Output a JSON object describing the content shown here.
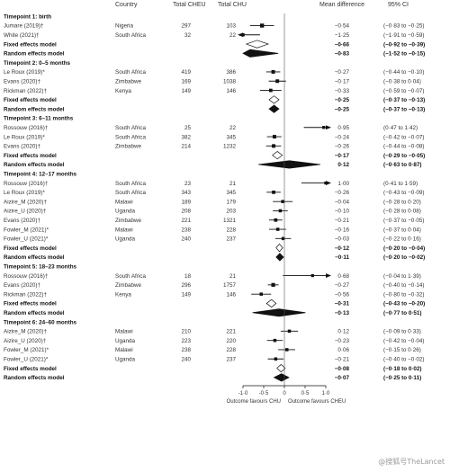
{
  "chart_data": {
    "type": "forest",
    "headers": {
      "country": "Country",
      "cheu": "Total CHEU",
      "chu": "Total CHU",
      "md": "Mean difference",
      "ci": "95% CI"
    },
    "xaxis": {
      "ticks": [
        -1.0,
        -0.5,
        0,
        0.5,
        1.0
      ],
      "tick_labels": [
        "-1·0",
        "-0·5",
        "0",
        "0·5",
        "1·0"
      ],
      "range": [
        -1.0,
        1.0
      ],
      "label_left": "Outcome favours CHU",
      "label_right": "Outcome favours CHEU"
    },
    "rows": [
      {
        "kind": "header",
        "label": "Timepoint 1: birth"
      },
      {
        "kind": "study",
        "label": "Jumare (2019)†",
        "country": "Nigeria",
        "cheu": "297",
        "chu": "103",
        "md": -0.54,
        "md_text": "−0·54",
        "ci": [
          -0.83,
          -0.25
        ],
        "ci_text": "(−0·83 to −0·25)",
        "w": 1.0
      },
      {
        "kind": "study",
        "label": "White (2021)†",
        "country": "South Africa",
        "cheu": "32",
        "chu": "22",
        "md": -1.25,
        "md_text": "−1·25",
        "ci": [
          -1.91,
          -0.59
        ],
        "ci_text": "(−1·91 to −0·59)",
        "w": 0.6,
        "arrow": "left"
      },
      {
        "kind": "fixed",
        "label": "Fixed effects model",
        "md": -0.66,
        "md_text": "−0·66",
        "ci": [
          -0.92,
          -0.39
        ],
        "ci_text": "(−0·92 to −0·39)"
      },
      {
        "kind": "random",
        "label": "Random effects model",
        "md": -0.83,
        "md_text": "−0·83",
        "ci": [
          -1.52,
          -0.15
        ],
        "ci_text": "(−1·52 to −0·15)"
      },
      {
        "kind": "header",
        "label": "Timepoint 2: 0–5 months"
      },
      {
        "kind": "study",
        "label": "Le Roux (2019)*",
        "country": "South Africa",
        "cheu": "419",
        "chu": "386",
        "md": -0.27,
        "md_text": "−0·27",
        "ci": [
          -0.44,
          -0.1
        ],
        "ci_text": "(−0·44 to −0·10)",
        "w": 0.8
      },
      {
        "kind": "study",
        "label": "Evans (2020)†",
        "country": "Zimbabwe",
        "cheu": "169",
        "chu": "1038",
        "md": -0.17,
        "md_text": "−0·17",
        "ci": [
          -0.38,
          0.04
        ],
        "ci_text": "(−0·38 to 0·04)",
        "w": 0.8
      },
      {
        "kind": "study",
        "label": "Rickman (2022)†",
        "country": "Kenya",
        "cheu": "149",
        "chu": "146",
        "md": -0.33,
        "md_text": "−0·33",
        "ci": [
          -0.59,
          -0.07
        ],
        "ci_text": "(−0·59 to −0·07)",
        "w": 0.7
      },
      {
        "kind": "fixed",
        "label": "Fixed effects model",
        "md": -0.25,
        "md_text": "−0·25",
        "ci": [
          -0.37,
          -0.13
        ],
        "ci_text": "(−0·37 to −0·13)"
      },
      {
        "kind": "random",
        "label": "Random effects model",
        "md": -0.25,
        "md_text": "−0·25",
        "ci": [
          -0.37,
          -0.13
        ],
        "ci_text": "(−0·37 to −0·13)"
      },
      {
        "kind": "header",
        "label": "Timepoint 3: 6–11 months"
      },
      {
        "kind": "study",
        "label": "Rossouw (2016)†",
        "country": "South Africa",
        "cheu": "25",
        "chu": "22",
        "md": 0.95,
        "md_text": "0·95",
        "ci": [
          0.47,
          1.42
        ],
        "ci_text": "(0·47 to 1·42)",
        "w": 0.5,
        "arrow": "right"
      },
      {
        "kind": "study",
        "label": "Le Roux (2019)*",
        "country": "South Africa",
        "cheu": "382",
        "chu": "345",
        "md": -0.24,
        "md_text": "−0·24",
        "ci": [
          -0.42,
          -0.07
        ],
        "ci_text": "(−0·42 to −0·07)",
        "w": 0.8
      },
      {
        "kind": "study",
        "label": "Evans (2020)†",
        "country": "Zimbabwe",
        "cheu": "214",
        "chu": "1232",
        "md": -0.26,
        "md_text": "−0·26",
        "ci": [
          -0.44,
          -0.08
        ],
        "ci_text": "(−0·44 to −0·08)",
        "w": 0.8
      },
      {
        "kind": "fixed",
        "label": "Fixed effects model",
        "md": -0.17,
        "md_text": "−0·17",
        "ci": [
          -0.29,
          -0.05
        ],
        "ci_text": "(−0·29 to −0·05)"
      },
      {
        "kind": "random",
        "label": "Random effects model",
        "md": 0.12,
        "md_text": "0·12",
        "ci": [
          -0.63,
          0.87
        ],
        "ci_text": "(−0·63 to 0·87)"
      },
      {
        "kind": "header",
        "label": "Timepoint 4: 12–17 months"
      },
      {
        "kind": "study",
        "label": "Rossouw (2016)†",
        "country": "South Africa",
        "cheu": "23",
        "chu": "21",
        "md": 1.0,
        "md_text": "1·00",
        "ci": [
          0.41,
          1.59
        ],
        "ci_text": "(0·41 to 1·59)",
        "w": 0.5,
        "arrow": "right"
      },
      {
        "kind": "study",
        "label": "Le Roux (2019)*",
        "country": "South Africa",
        "cheu": "343",
        "chu": "345",
        "md": -0.26,
        "md_text": "−0·26",
        "ci": [
          -0.43,
          -0.09
        ],
        "ci_text": "(−0·43 to −0·09)",
        "w": 0.7
      },
      {
        "kind": "study",
        "label": "Aizire_M (2020)†",
        "country": "Malawi",
        "cheu": "189",
        "chu": "179",
        "md": -0.04,
        "md_text": "−0·04",
        "ci": [
          -0.28,
          0.2
        ],
        "ci_text": "(−0·28 to 0·20)",
        "w": 0.6
      },
      {
        "kind": "study",
        "label": "Aizire_U (2020)†",
        "country": "Uganda",
        "cheu": "208",
        "chu": "203",
        "md": -0.1,
        "md_text": "−0·10",
        "ci": [
          -0.28,
          0.08
        ],
        "ci_text": "(−0·28 to 0·08)",
        "w": 0.6
      },
      {
        "kind": "study",
        "label": "Evans (2020)†",
        "country": "Zimbabwe",
        "cheu": "221",
        "chu": "1321",
        "md": -0.21,
        "md_text": "−0·21",
        "ci": [
          -0.37,
          -0.05
        ],
        "ci_text": "(−0·37 to −0·05)",
        "w": 0.7
      },
      {
        "kind": "study",
        "label": "Fowler_M (2021)*",
        "country": "Malawi",
        "cheu": "238",
        "chu": "228",
        "md": -0.16,
        "md_text": "−0·16",
        "ci": [
          -0.37,
          0.04
        ],
        "ci_text": "(−0·37 to 0·04)",
        "w": 0.6
      },
      {
        "kind": "study",
        "label": "Fowler_U (2021)*",
        "country": "Uganda",
        "cheu": "240",
        "chu": "237",
        "md": -0.03,
        "md_text": "−0·03",
        "ci": [
          -0.22,
          0.16
        ],
        "ci_text": "(−0·22 to 0·16)",
        "w": 0.6
      },
      {
        "kind": "fixed",
        "label": "Fixed effects model",
        "md": -0.12,
        "md_text": "−0·12",
        "ci": [
          -0.2,
          -0.04
        ],
        "ci_text": "(−0·20 to −0·04)"
      },
      {
        "kind": "random",
        "label": "Random effects model",
        "md": -0.11,
        "md_text": "−0·11",
        "ci": [
          -0.2,
          -0.02
        ],
        "ci_text": "(−0·20 to −0·02)"
      },
      {
        "kind": "header",
        "label": "Timepoint 5: 18–23 months"
      },
      {
        "kind": "study",
        "label": "Rossouw (2016)†",
        "country": "South Africa",
        "cheu": "18",
        "chu": "21",
        "md": 0.68,
        "md_text": "0·68",
        "ci": [
          -0.04,
          1.39
        ],
        "ci_text": "(−0·04 to 1·39)",
        "w": 0.5,
        "arrow": "right"
      },
      {
        "kind": "study",
        "label": "Evans (2020)†",
        "country": "Zimbabwe",
        "cheu": "296",
        "chu": "1757",
        "md": -0.27,
        "md_text": "−0·27",
        "ci": [
          -0.4,
          -0.14
        ],
        "ci_text": "(−0·40 to −0·14)",
        "w": 0.9
      },
      {
        "kind": "study",
        "label": "Rickman (2022)†",
        "country": "Kenya",
        "cheu": "149",
        "chu": "146",
        "md": -0.56,
        "md_text": "−0·56",
        "ci": [
          -0.8,
          -0.32
        ],
        "ci_text": "(−0·80 to −0·32)",
        "w": 0.6
      },
      {
        "kind": "fixed",
        "label": "Fixed effects model",
        "md": -0.31,
        "md_text": "−0·31",
        "ci": [
          -0.43,
          -0.2
        ],
        "ci_text": "(−0·43 to −0·20)"
      },
      {
        "kind": "random",
        "label": "Random effects model",
        "md": -0.13,
        "md_text": "−0·13",
        "ci": [
          -0.77,
          0.51
        ],
        "ci_text": "(−0·77 to 0·51)"
      },
      {
        "kind": "header",
        "label": "Timepoint 6: 24–60 months"
      },
      {
        "kind": "study",
        "label": "Aizire_M (2020)†",
        "country": "Malawi",
        "cheu": "210",
        "chu": "221",
        "md": 0.12,
        "md_text": "0·12",
        "ci": [
          -0.09,
          0.33
        ],
        "ci_text": "(−0·09 to 0·33)",
        "w": 0.6
      },
      {
        "kind": "study",
        "label": "Aizire_U (2020)†",
        "country": "Uganda",
        "cheu": "223",
        "chu": "220",
        "md": -0.23,
        "md_text": "−0·23",
        "ci": [
          -0.42,
          -0.04
        ],
        "ci_text": "(−0·42 to −0·04)",
        "w": 0.6
      },
      {
        "kind": "study",
        "label": "Fowler_M (2021)*",
        "country": "Malawi",
        "cheu": "238",
        "chu": "228",
        "md": 0.06,
        "md_text": "0·06",
        "ci": [
          -0.15,
          0.26
        ],
        "ci_text": "(−0·15 to 0·26)",
        "w": 0.6
      },
      {
        "kind": "study",
        "label": "Fowler_U (2021)*",
        "country": "Uganda",
        "cheu": "240",
        "chu": "237",
        "md": -0.21,
        "md_text": "−0·21",
        "ci": [
          -0.4,
          -0.02
        ],
        "ci_text": "(−0·40 to −0·02)",
        "w": 0.6
      },
      {
        "kind": "fixed",
        "label": "Fixed effects model",
        "md": -0.08,
        "md_text": "−0·08",
        "ci": [
          -0.18,
          0.02
        ],
        "ci_text": "(−0·18 to 0·02)"
      },
      {
        "kind": "random",
        "label": "Random effects model",
        "md": -0.07,
        "md_text": "−0·07",
        "ci": [
          -0.25,
          0.11
        ],
        "ci_text": "(−0·25 to 0·11)"
      }
    ]
  },
  "watermark": "@搜狐号TheLancet"
}
